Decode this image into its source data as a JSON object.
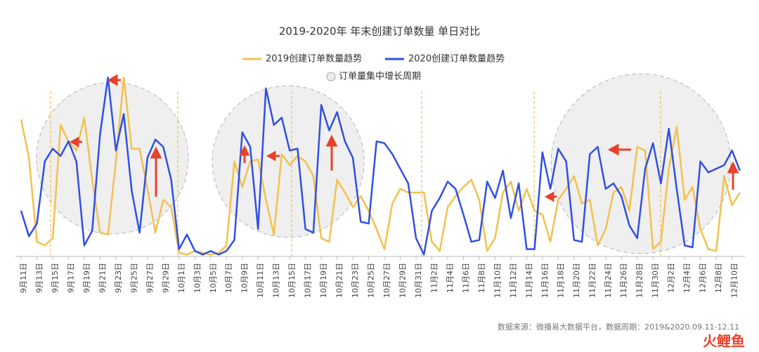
{
  "chart_data": {
    "type": "line",
    "title": "2019-2020年 年末创建订单数量 单日对比",
    "categories": [
      "9月11日",
      null,
      "9月13日",
      null,
      "9月15日",
      null,
      "9月17日",
      null,
      "9月19日",
      null,
      "9月21日",
      null,
      "9月23日",
      null,
      "9月25日",
      null,
      "9月27日",
      null,
      "9月29日",
      null,
      "10月1日",
      null,
      "10月3日",
      null,
      "10月5日",
      null,
      "10月7日",
      null,
      "10月9日",
      null,
      "10月11日",
      null,
      "10月13日",
      null,
      "10月15日",
      null,
      "10月17日",
      null,
      "10月19日",
      null,
      "10月21日",
      null,
      "10月23日",
      null,
      "10月25日",
      null,
      "10月27日",
      null,
      "10月29日",
      null,
      "10月31日",
      null,
      "11月2日",
      null,
      "11月4日",
      null,
      "11月6日",
      null,
      "11月8日",
      null,
      "11月10日",
      null,
      "11月12日",
      null,
      "11月14日",
      null,
      "11月16日",
      null,
      "11月18日",
      null,
      "11月20日",
      null,
      "11月22日",
      null,
      "11月24日",
      null,
      "11月26日",
      null,
      "11月28日",
      null,
      "11月30日",
      null,
      "12月2日",
      null,
      "12月4日",
      null,
      "12月6日",
      null,
      "12月8日",
      null,
      "12月10日",
      null
    ],
    "series": [
      {
        "name": "2019创建订单数量趋势",
        "color": "#f2c14e",
        "values": [
          75,
          54,
          8,
          6,
          10,
          72,
          63,
          58,
          76,
          42,
          13,
          12,
          52,
          98,
          59,
          59,
          37,
          13,
          31,
          27,
          2,
          1,
          3,
          2,
          1,
          2,
          6,
          52,
          38,
          52,
          53,
          31,
          12,
          56,
          50,
          55,
          52,
          44,
          10,
          8,
          42,
          35,
          27,
          33,
          25,
          15,
          4,
          29,
          37,
          35,
          35,
          35,
          8,
          3,
          27,
          33,
          38,
          42,
          31,
          3,
          10,
          35,
          41,
          25,
          37,
          25,
          23,
          8,
          31,
          37,
          44,
          29,
          31,
          6,
          15,
          35,
          38,
          25,
          60,
          58,
          4,
          8,
          48,
          71,
          31,
          38,
          15,
          4,
          3,
          44,
          28,
          35
        ]
      },
      {
        "name": "2020创建订单数量趋势",
        "color": "#3150e2",
        "values": [
          25,
          11,
          18,
          52,
          59,
          55,
          63,
          52,
          6,
          14,
          67,
          98,
          58,
          78,
          36,
          13,
          54,
          64,
          60,
          42,
          4,
          12,
          3,
          1,
          3,
          1,
          3,
          9,
          68,
          60,
          15,
          92,
          72,
          76,
          58,
          59,
          15,
          13,
          83,
          69,
          79,
          63,
          54,
          19,
          18,
          63,
          62,
          56,
          48,
          40,
          10,
          1,
          25,
          32,
          41,
          37,
          23,
          8,
          9,
          41,
          32,
          47,
          21,
          40,
          4,
          4,
          57,
          37,
          59,
          52,
          9,
          8,
          56,
          60,
          37,
          40,
          33,
          17,
          10,
          48,
          62,
          40,
          70,
          37,
          6,
          5,
          52,
          46,
          48,
          50,
          58,
          47
        ]
      }
    ],
    "ylim": [
      0,
      100
    ],
    "legend_extra": "订单量集中增长周期",
    "source": "数据来源：微播易大数据平台，数据周期：2019&2020.09.11-12.11",
    "logo": "火鲤鱼"
  }
}
